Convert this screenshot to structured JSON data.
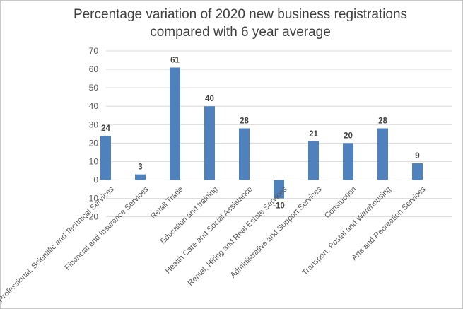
{
  "chart_data": {
    "type": "bar",
    "title": "Percentage variation of 2020 new business registrations compared with 6 year average",
    "title_lines": [
      "Percentage variation of 2020 new business registrations",
      "compared with 6 year average"
    ],
    "categories": [
      "Professional, Scientific and Technical Services",
      "Financial and Insurance Services",
      "Retail Trade",
      "Education and training",
      "Health Care and Social Assistance",
      "Rental, Hiring and Real Estate Services",
      "Administrative and Support Services",
      "Constuction",
      "Transport, Postal and Warehousing",
      "Arts and Recreation Services"
    ],
    "values": [
      24,
      3,
      61,
      40,
      28,
      -10,
      21,
      20,
      28,
      9
    ],
    "ylim": [
      -20,
      70
    ],
    "yticks": [
      -20,
      -10,
      0,
      10,
      20,
      30,
      40,
      50,
      60,
      70
    ],
    "bar_color": "#4f81bd",
    "grid": true,
    "legend": "none"
  }
}
